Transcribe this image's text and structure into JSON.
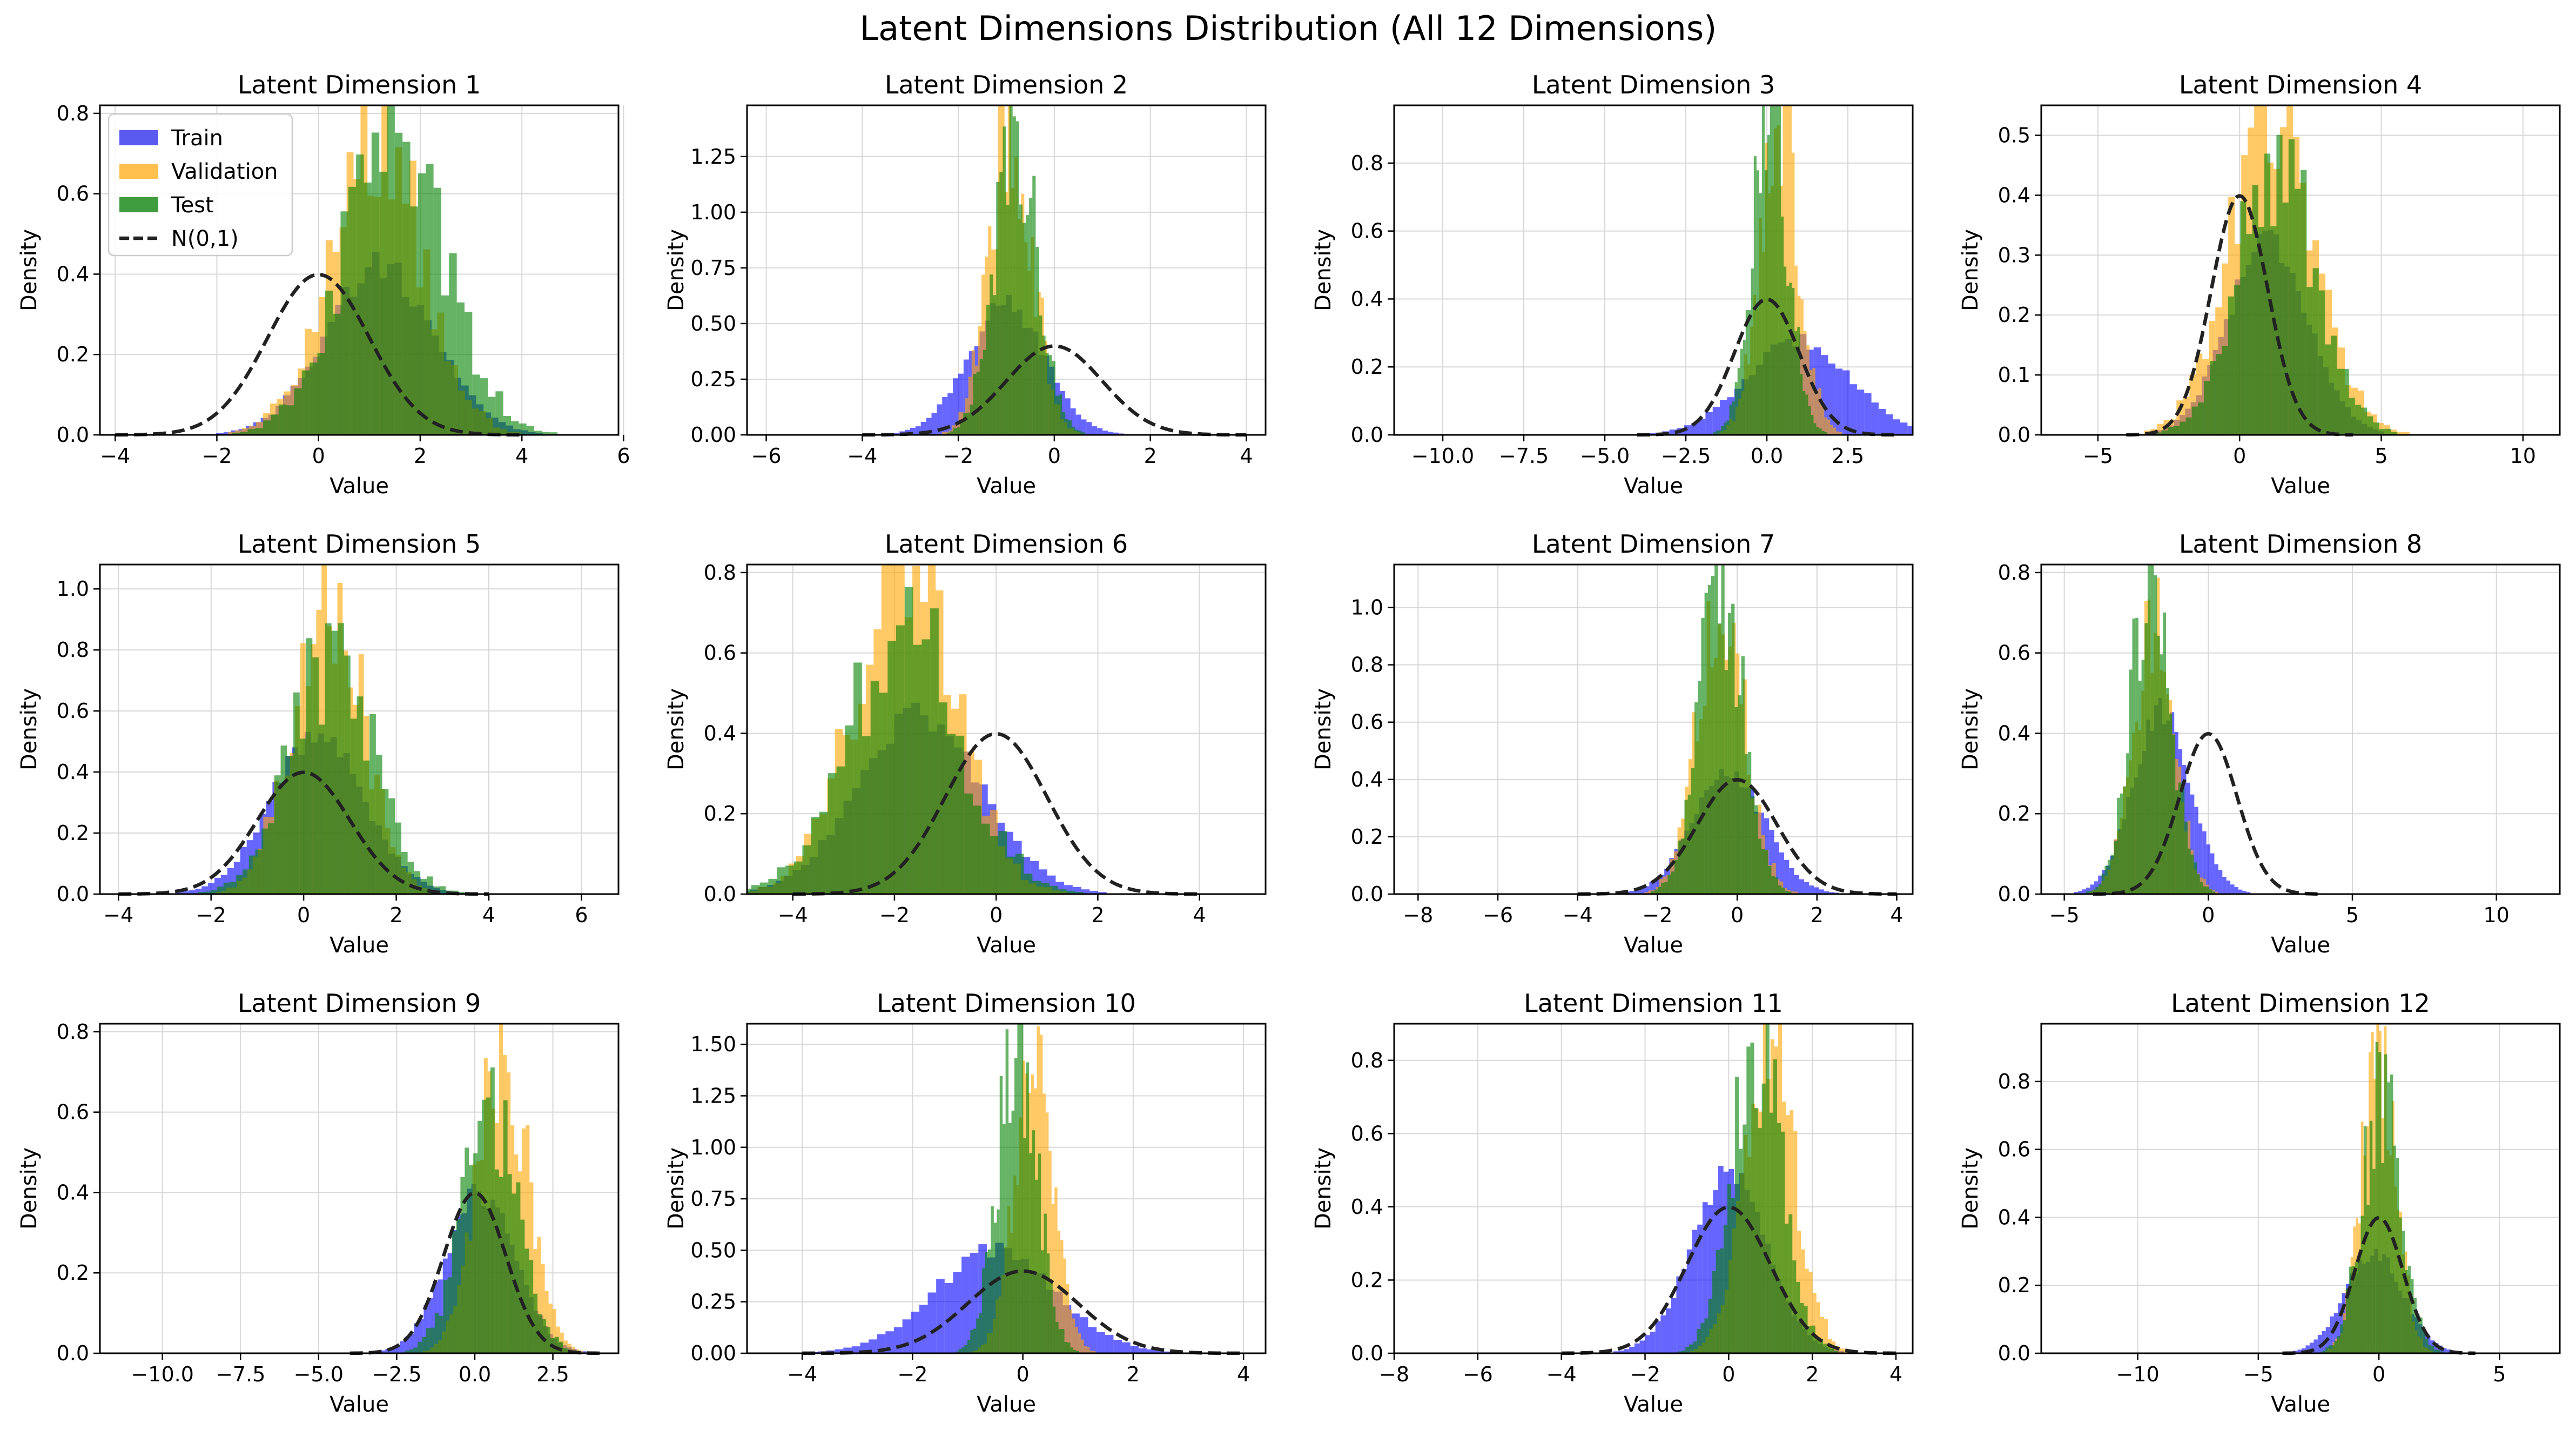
{
  "figure_title": "Latent Dimensions Distribution (All 12 Dimensions)",
  "legend": {
    "location": "upper-left of first panel",
    "entries": [
      {
        "label": "Train",
        "color": "#5a5af0",
        "kind": "patch"
      },
      {
        "label": "Validation",
        "color": "#ffc04d",
        "kind": "patch"
      },
      {
        "label": "Test",
        "color": "#3f9d3f",
        "kind": "patch"
      },
      {
        "label": "N(0,1)",
        "color": "#222222",
        "kind": "dashed-line"
      }
    ]
  },
  "colors": {
    "train": "#0000ff",
    "validation": "#ffa500",
    "test": "#008000",
    "normal": "#222222",
    "overlap": "#8a7e3a"
  },
  "chart_data": [
    {
      "type": "histogram",
      "title": "Latent Dimension 1",
      "xlabel": "Value",
      "ylabel": "Density",
      "xlim": [
        -4.3,
        5.9
      ],
      "ylim": [
        0,
        0.82
      ],
      "xticks": [
        -4,
        -2,
        0,
        2,
        4,
        6
      ],
      "xtick_labels": [
        "−4",
        "−2",
        "0",
        "2",
        "4",
        "6"
      ],
      "yticks": [
        0,
        0.2,
        0.4,
        0.6,
        0.8
      ],
      "ytick_labels": [
        "0.0",
        "0.2",
        "0.4",
        "0.6",
        "0.8"
      ],
      "grid": true,
      "series": [
        {
          "name": "Train",
          "mean": 1.2,
          "sd": 1.05,
          "peak": 0.42
        },
        {
          "name": "Validation",
          "mean": 1.1,
          "sd": 0.9,
          "peak": 0.77
        },
        {
          "name": "Test",
          "mean": 1.5,
          "sd": 1.0,
          "peak": 0.72
        }
      ],
      "normal_curve": {
        "mean": 0,
        "sd": 1
      }
    },
    {
      "type": "histogram",
      "title": "Latent Dimension 2",
      "xlabel": "Value",
      "ylabel": "Density",
      "xlim": [
        -6.4,
        4.4
      ],
      "ylim": [
        0,
        1.48
      ],
      "xticks": [
        -6,
        -4,
        -2,
        0,
        2,
        4
      ],
      "xtick_labels": [
        "−6",
        "−4",
        "−2",
        "0",
        "2",
        "4"
      ],
      "yticks": [
        0,
        0.25,
        0.5,
        0.75,
        1.0,
        1.25
      ],
      "ytick_labels": [
        "0.00",
        "0.25",
        "0.50",
        "0.75",
        "1.00",
        "1.25"
      ],
      "grid": true,
      "series": [
        {
          "name": "Train",
          "mean": -1.0,
          "sd": 0.8,
          "peak": 0.58
        },
        {
          "name": "Validation",
          "mean": -0.9,
          "sd": 0.45,
          "peak": 1.4
        },
        {
          "name": "Test",
          "mean": -0.8,
          "sd": 0.45,
          "peak": 1.32
        }
      ],
      "normal_curve": {
        "mean": 0,
        "sd": 1
      }
    },
    {
      "type": "histogram",
      "title": "Latent Dimension 3",
      "xlabel": "Value",
      "ylabel": "Density",
      "xlim": [
        -11.5,
        4.5
      ],
      "ylim": [
        0,
        0.97
      ],
      "xticks": [
        -10,
        -7.5,
        -5,
        -2.5,
        0,
        2.5
      ],
      "xtick_labels": [
        "−10.0",
        "−7.5",
        "−5.0",
        "−2.5",
        "0.0",
        "2.5"
      ],
      "yticks": [
        0,
        0.2,
        0.4,
        0.6,
        0.8
      ],
      "ytick_labels": [
        "0.0",
        "0.2",
        "0.4",
        "0.6",
        "0.8"
      ],
      "grid": true,
      "series": [
        {
          "name": "Train",
          "mean": 1.0,
          "sd": 1.6,
          "peak": 0.28
        },
        {
          "name": "Validation",
          "mean": 0.4,
          "sd": 0.6,
          "peak": 0.9
        },
        {
          "name": "Test",
          "mean": 0.1,
          "sd": 0.55,
          "peak": 0.95
        }
      ],
      "normal_curve": {
        "mean": 0,
        "sd": 1
      }
    },
    {
      "type": "histogram",
      "title": "Latent Dimension 4",
      "xlabel": "Value",
      "ylabel": "Density",
      "xlim": [
        -7.0,
        11.3
      ],
      "ylim": [
        0,
        0.55
      ],
      "xticks": [
        -5,
        0,
        5,
        10
      ],
      "xtick_labels": [
        "−5",
        "0",
        "5",
        "10"
      ],
      "yticks": [
        0,
        0.1,
        0.2,
        0.3,
        0.4,
        0.5
      ],
      "ytick_labels": [
        "0.0",
        "0.1",
        "0.2",
        "0.3",
        "0.4",
        "0.5"
      ],
      "grid": true,
      "series": [
        {
          "name": "Train",
          "mean": 1.0,
          "sd": 1.4,
          "peak": 0.33
        },
        {
          "name": "Validation",
          "mean": 1.2,
          "sd": 1.5,
          "peak": 0.53
        },
        {
          "name": "Test",
          "mean": 1.3,
          "sd": 1.4,
          "peak": 0.45
        }
      ],
      "normal_curve": {
        "mean": 0,
        "sd": 1
      }
    },
    {
      "type": "histogram",
      "title": "Latent Dimension 5",
      "xlabel": "Value",
      "ylabel": "Density",
      "xlim": [
        -4.4,
        6.8
      ],
      "ylim": [
        0,
        1.08
      ],
      "xticks": [
        -4,
        -2,
        0,
        2,
        4,
        6
      ],
      "xtick_labels": [
        "−4",
        "−2",
        "0",
        "2",
        "4",
        "6"
      ],
      "yticks": [
        0,
        0.2,
        0.4,
        0.6,
        0.8,
        1.0
      ],
      "ytick_labels": [
        "0.0",
        "0.2",
        "0.4",
        "0.6",
        "0.8",
        "1.0"
      ],
      "grid": true,
      "series": [
        {
          "name": "Train",
          "mean": 0.3,
          "sd": 1.0,
          "peak": 0.52
        },
        {
          "name": "Validation",
          "mean": 0.5,
          "sd": 0.75,
          "peak": 1.02
        },
        {
          "name": "Test",
          "mean": 0.6,
          "sd": 0.9,
          "peak": 0.76
        }
      ],
      "normal_curve": {
        "mean": 0,
        "sd": 1
      }
    },
    {
      "type": "histogram",
      "title": "Latent Dimension 6",
      "xlabel": "Value",
      "ylabel": "Density",
      "xlim": [
        -4.9,
        5.3
      ],
      "ylim": [
        0,
        0.82
      ],
      "xticks": [
        -4,
        -2,
        0,
        2,
        4
      ],
      "xtick_labels": [
        "−4",
        "−2",
        "0",
        "2",
        "4"
      ],
      "yticks": [
        0,
        0.2,
        0.4,
        0.6,
        0.8
      ],
      "ytick_labels": [
        "0.0",
        "0.2",
        "0.4",
        "0.6",
        "0.8"
      ],
      "grid": true,
      "series": [
        {
          "name": "Train",
          "mean": -1.5,
          "sd": 1.2,
          "peak": 0.45
        },
        {
          "name": "Validation",
          "mean": -1.8,
          "sd": 1.0,
          "peak": 0.78
        },
        {
          "name": "Test",
          "mean": -1.8,
          "sd": 1.1,
          "peak": 0.66
        }
      ],
      "normal_curve": {
        "mean": 0,
        "sd": 1
      }
    },
    {
      "type": "histogram",
      "title": "Latent Dimension 7",
      "xlabel": "Value",
      "ylabel": "Density",
      "xlim": [
        -8.6,
        4.4
      ],
      "ylim": [
        0,
        1.15
      ],
      "xticks": [
        -8,
        -6,
        -4,
        -2,
        0,
        2,
        4
      ],
      "xtick_labels": [
        "−8",
        "−6",
        "−4",
        "−2",
        "0",
        "2",
        "4"
      ],
      "yticks": [
        0,
        0.2,
        0.4,
        0.6,
        0.8,
        1.0
      ],
      "ytick_labels": [
        "0.0",
        "0.2",
        "0.4",
        "0.6",
        "0.8",
        "1.0"
      ],
      "grid": true,
      "series": [
        {
          "name": "Train",
          "mean": -0.2,
          "sd": 0.9,
          "peak": 0.42
        },
        {
          "name": "Validation",
          "mean": -0.4,
          "sd": 0.6,
          "peak": 1.0
        },
        {
          "name": "Test",
          "mean": -0.4,
          "sd": 0.55,
          "peak": 1.1
        }
      ],
      "normal_curve": {
        "mean": 0,
        "sd": 1
      }
    },
    {
      "type": "histogram",
      "title": "Latent Dimension 8",
      "xlabel": "Value",
      "ylabel": "Density",
      "xlim": [
        -5.8,
        12.2
      ],
      "ylim": [
        0,
        0.82
      ],
      "xticks": [
        -5,
        0,
        5,
        10
      ],
      "xtick_labels": [
        "−5",
        "0",
        "5",
        "10"
      ],
      "yticks": [
        0,
        0.2,
        0.4,
        0.6,
        0.8
      ],
      "ytick_labels": [
        "0.0",
        "0.2",
        "0.4",
        "0.6",
        "0.8"
      ],
      "grid": true,
      "series": [
        {
          "name": "Train",
          "mean": -1.6,
          "sd": 1.0,
          "peak": 0.45
        },
        {
          "name": "Validation",
          "mean": -1.9,
          "sd": 0.7,
          "peak": 0.7
        },
        {
          "name": "Test",
          "mean": -2.0,
          "sd": 0.7,
          "peak": 0.78
        }
      ],
      "normal_curve": {
        "mean": 0,
        "sd": 1
      }
    },
    {
      "type": "histogram",
      "title": "Latent Dimension 9",
      "xlabel": "Value",
      "ylabel": "Density",
      "xlim": [
        -12.0,
        4.6
      ],
      "ylim": [
        0,
        0.82
      ],
      "xticks": [
        -10,
        -7.5,
        -5,
        -2.5,
        0,
        2.5
      ],
      "xtick_labels": [
        "−10.0",
        "−7.5",
        "−5.0",
        "−2.5",
        "0.0",
        "2.5"
      ],
      "yticks": [
        0,
        0.2,
        0.4,
        0.6,
        0.8
      ],
      "ytick_labels": [
        "0.0",
        "0.2",
        "0.4",
        "0.6",
        "0.8"
      ],
      "grid": true,
      "series": [
        {
          "name": "Train",
          "mean": 0.2,
          "sd": 1.1,
          "peak": 0.4
        },
        {
          "name": "Validation",
          "mean": 0.9,
          "sd": 0.8,
          "peak": 0.78
        },
        {
          "name": "Test",
          "mean": 0.5,
          "sd": 0.9,
          "peak": 0.58
        }
      ],
      "normal_curve": {
        "mean": 0,
        "sd": 1
      }
    },
    {
      "type": "histogram",
      "title": "Latent Dimension 10",
      "xlabel": "Value",
      "ylabel": "Density",
      "xlim": [
        -5.0,
        4.4
      ],
      "ylim": [
        0,
        1.6
      ],
      "xticks": [
        -4,
        -2,
        0,
        2,
        4
      ],
      "xtick_labels": [
        "−4",
        "−2",
        "0",
        "2",
        "4"
      ],
      "yticks": [
        0,
        0.25,
        0.5,
        0.75,
        1.0,
        1.25,
        1.5
      ],
      "ytick_labels": [
        "0.00",
        "0.25",
        "0.50",
        "0.75",
        "1.00",
        "1.25",
        "1.50"
      ],
      "grid": true,
      "series": [
        {
          "name": "Train",
          "mean": -0.5,
          "sd": 1.1,
          "peak": 0.5
        },
        {
          "name": "Validation",
          "mean": 0.2,
          "sd": 0.35,
          "peak": 1.32
        },
        {
          "name": "Test",
          "mean": -0.1,
          "sd": 0.35,
          "peak": 1.52
        }
      ],
      "normal_curve": {
        "mean": 0,
        "sd": 1
      }
    },
    {
      "type": "histogram",
      "title": "Latent Dimension 11",
      "xlabel": "Value",
      "ylabel": "Density",
      "xlim": [
        -8.0,
        4.4
      ],
      "ylim": [
        0,
        0.9
      ],
      "xticks": [
        -8,
        -6,
        -4,
        -2,
        0,
        2,
        4
      ],
      "xtick_labels": [
        "−8",
        "−6",
        "−4",
        "−2",
        "0",
        "2",
        "4"
      ],
      "yticks": [
        0,
        0.2,
        0.4,
        0.6,
        0.8
      ],
      "ytick_labels": [
        "0.0",
        "0.2",
        "0.4",
        "0.6",
        "0.8"
      ],
      "grid": true,
      "series": [
        {
          "name": "Train",
          "mean": 0.0,
          "sd": 0.9,
          "peak": 0.48
        },
        {
          "name": "Validation",
          "mean": 1.0,
          "sd": 0.6,
          "peak": 0.86
        },
        {
          "name": "Test",
          "mean": 0.7,
          "sd": 0.6,
          "peak": 0.85
        }
      ],
      "normal_curve": {
        "mean": 0,
        "sd": 1
      }
    },
    {
      "type": "histogram",
      "title": "Latent Dimension 12",
      "xlabel": "Value",
      "ylabel": "Density",
      "xlim": [
        -14.0,
        7.5
      ],
      "ylim": [
        0,
        0.97
      ],
      "xticks": [
        -10,
        -5,
        0,
        5
      ],
      "xtick_labels": [
        "−10",
        "−5",
        "0",
        "5"
      ],
      "yticks": [
        0,
        0.2,
        0.4,
        0.6,
        0.8
      ],
      "ytick_labels": [
        "0.0",
        "0.2",
        "0.4",
        "0.6",
        "0.8"
      ],
      "grid": true,
      "series": [
        {
          "name": "Train",
          "mean": -0.2,
          "sd": 1.2,
          "peak": 0.3
        },
        {
          "name": "Validation",
          "mean": 0.0,
          "sd": 0.7,
          "peak": 0.93
        },
        {
          "name": "Test",
          "mean": 0.1,
          "sd": 0.8,
          "peak": 0.75
        }
      ],
      "normal_curve": {
        "mean": 0,
        "sd": 1
      }
    }
  ]
}
